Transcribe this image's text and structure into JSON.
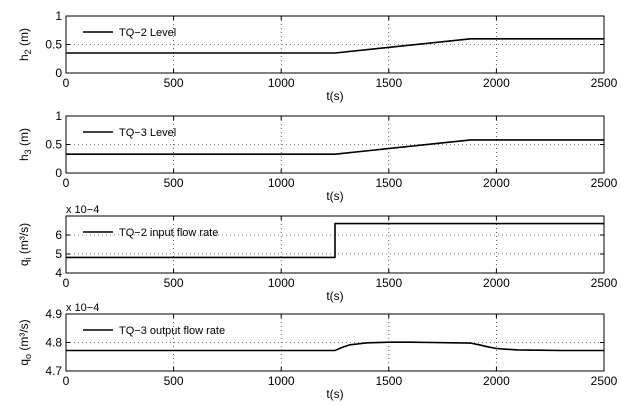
{
  "chart_data": [
    {
      "type": "line",
      "xlabel": "t(s)",
      "ylabel_main": "h",
      "ylabel_sub": "2",
      "ylabel_unit": " (m)",
      "xlim": [
        0,
        2500
      ],
      "ylim": [
        0,
        1
      ],
      "xticks": [
        0,
        500,
        1000,
        1500,
        2000,
        2500
      ],
      "xtick_labels": [
        "0",
        "500",
        "1000",
        "1500",
        "2000",
        "2500"
      ],
      "yticks": [
        0,
        0.5,
        1
      ],
      "ytick_labels": [
        "0",
        "0.5",
        "1"
      ],
      "exponent_label": "",
      "grid": true,
      "legend_position": "top-left",
      "series": [
        {
          "name": "TQ−2 Level",
          "x": [
            0,
            1250,
            1880,
            2500
          ],
          "y": [
            0.35,
            0.35,
            0.6,
            0.6
          ]
        }
      ]
    },
    {
      "type": "line",
      "xlabel": "t(s)",
      "ylabel_main": "h",
      "ylabel_sub": "3",
      "ylabel_unit": " (m)",
      "xlim": [
        0,
        2500
      ],
      "ylim": [
        0,
        1
      ],
      "xticks": [
        0,
        500,
        1000,
        1500,
        2000,
        2500
      ],
      "xtick_labels": [
        "0",
        "500",
        "1000",
        "1500",
        "2000",
        "2500"
      ],
      "yticks": [
        0,
        0.5,
        1
      ],
      "ytick_labels": [
        "0",
        "0.5",
        "1"
      ],
      "exponent_label": "",
      "grid": true,
      "legend_position": "top-left",
      "series": [
        {
          "name": "TQ−3 Level",
          "x": [
            0,
            1250,
            1880,
            2500
          ],
          "y": [
            0.33,
            0.33,
            0.58,
            0.58
          ]
        }
      ]
    },
    {
      "type": "line",
      "xlabel": "t(s)",
      "ylabel_main": "q",
      "ylabel_sub": "i",
      "ylabel_unit": " (m³/s)",
      "xlim": [
        0,
        2500
      ],
      "ylim": [
        4,
        7
      ],
      "xticks": [
        0,
        500,
        1000,
        1500,
        2000,
        2500
      ],
      "xtick_labels": [
        "0",
        "500",
        "1000",
        "1500",
        "2000",
        "2500"
      ],
      "yticks": [
        4,
        5,
        6
      ],
      "ytick_labels": [
        "4",
        "5",
        "6"
      ],
      "exponent_label": "x 10−4",
      "grid": true,
      "legend_position": "top-left",
      "series": [
        {
          "name": "TQ−2 input flow rate",
          "x": [
            0,
            1250,
            1250,
            2500
          ],
          "y": [
            4.82,
            4.82,
            6.6,
            6.6
          ]
        }
      ]
    },
    {
      "type": "line",
      "xlabel": "t(s)",
      "ylabel_main": "q",
      "ylabel_sub": "o",
      "ylabel_unit": " (m³/s)",
      "xlim": [
        0,
        2500
      ],
      "ylim": [
        4.7,
        4.9
      ],
      "xticks": [
        0,
        500,
        1000,
        1500,
        2000,
        2500
      ],
      "xtick_labels": [
        "0",
        "500",
        "1000",
        "1500",
        "2000",
        "2500"
      ],
      "yticks": [
        4.7,
        4.8,
        4.9
      ],
      "ytick_labels": [
        "4.7",
        "4.8",
        "4.9"
      ],
      "exponent_label": "x 10−4",
      "grid": true,
      "legend_position": "top-left",
      "series": [
        {
          "name": "TQ−3 output flow rate",
          "x": [
            0,
            1250,
            1280,
            1320,
            1400,
            1500,
            1600,
            1700,
            1800,
            1880,
            1920,
            1960,
            2000,
            2050,
            2100,
            2200,
            2300,
            2500
          ],
          "y": [
            4.772,
            4.772,
            4.782,
            4.792,
            4.799,
            4.801,
            4.801,
            4.8,
            4.799,
            4.798,
            4.792,
            4.785,
            4.779,
            4.776,
            4.774,
            4.773,
            4.772,
            4.772
          ]
        }
      ]
    }
  ]
}
